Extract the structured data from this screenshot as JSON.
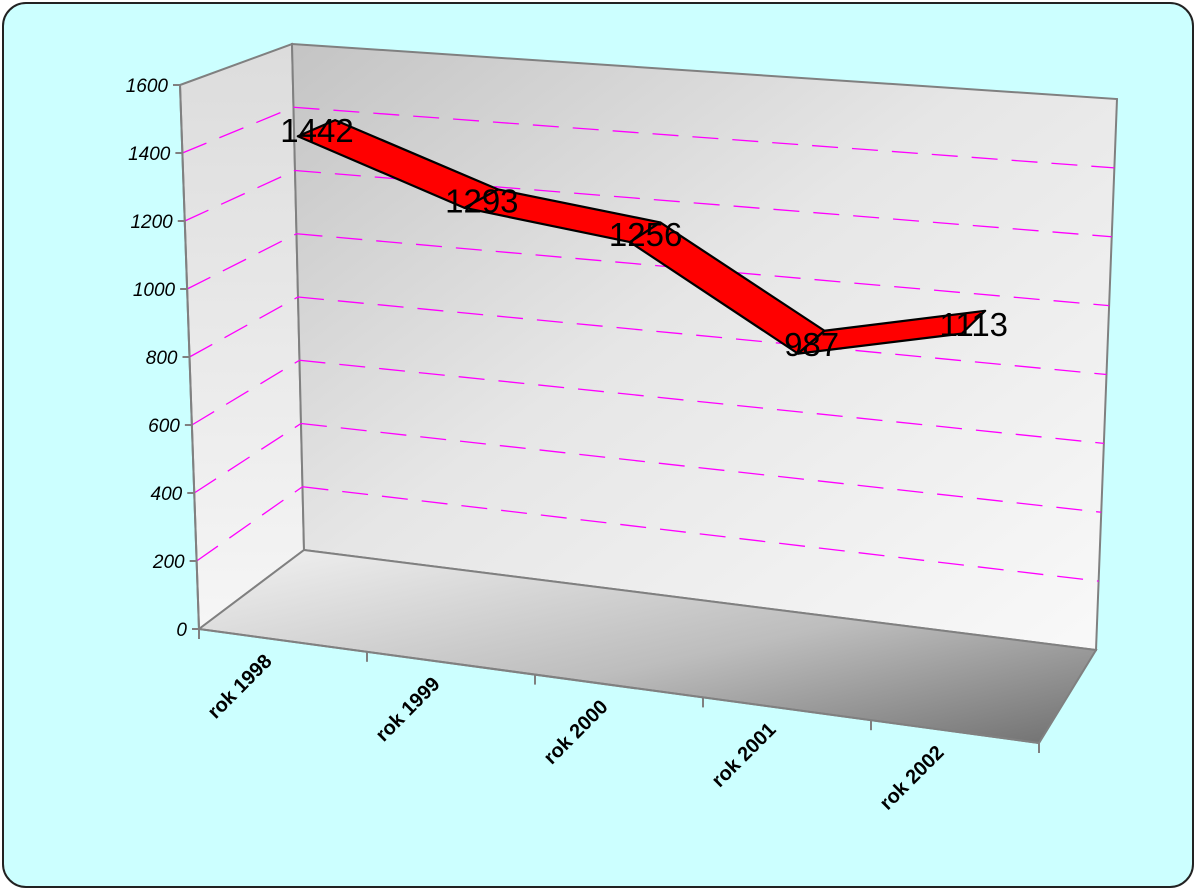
{
  "chart_data": {
    "type": "line",
    "style": "3d-ribbon",
    "categories": [
      "rok 1998",
      "rok 1999",
      "rok 2000",
      "rok 2001",
      "rok 2002"
    ],
    "series": [
      {
        "values": [
          1442,
          1293,
          1256,
          987,
          1113
        ]
      }
    ],
    "data_labels": [
      "1442",
      "1293",
      "1256",
      "987",
      "1113"
    ],
    "y_ticks": [
      "0",
      "200",
      "400",
      "600",
      "800",
      "1000",
      "1200",
      "1400",
      "1600"
    ],
    "ylim": [
      0,
      1600
    ],
    "grid": true,
    "legend": "none",
    "colors": {
      "background": "#ccffff",
      "series": "#ff0000",
      "gridlines": "#ff00ff"
    }
  }
}
